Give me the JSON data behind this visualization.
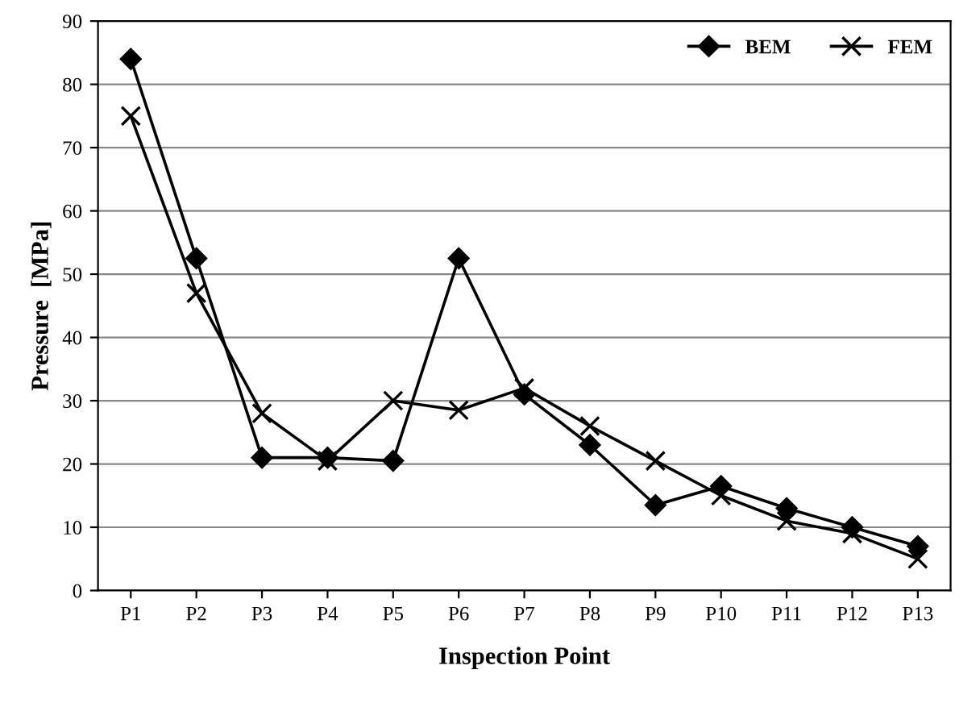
{
  "chart_data": {
    "type": "line",
    "xlabel": "Inspection Point",
    "ylabel": "Pressure  [MPa]",
    "categories": [
      "P1",
      "P2",
      "P3",
      "P4",
      "P5",
      "P6",
      "P7",
      "P8",
      "P9",
      "P10",
      "P11",
      "P12",
      "P13"
    ],
    "series": [
      {
        "name": "BEM",
        "color": "#000000",
        "marker": "diamond",
        "values": [
          84,
          52.5,
          21,
          21,
          20.5,
          52.5,
          31,
          23,
          13.5,
          16.5,
          13,
          10,
          7
        ]
      },
      {
        "name": "FEM",
        "color": "#000000",
        "marker": "cross",
        "values": [
          75,
          47,
          28,
          20.5,
          30,
          28.5,
          32,
          26,
          20.5,
          15,
          11,
          9,
          5
        ]
      }
    ],
    "ylim": [
      0,
      90
    ],
    "yticks": [
      0,
      10,
      20,
      30,
      40,
      50,
      60,
      70,
      80,
      90
    ],
    "grid": "y",
    "legend": "top right",
    "line_style": "solid"
  }
}
